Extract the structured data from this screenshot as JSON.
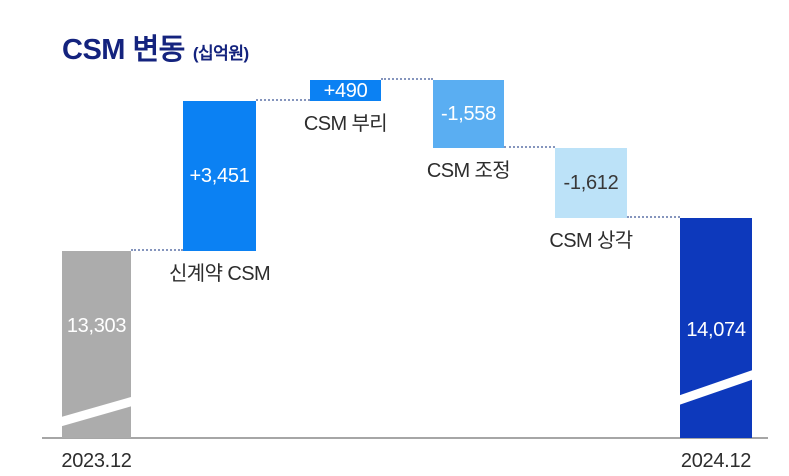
{
  "title": {
    "text": "CSM 변동",
    "unit": "(십억원)"
  },
  "chart_data": {
    "type": "waterfall",
    "title": "CSM 변동",
    "unit_label": "(십억원)",
    "x_axis_labels": [
      "2023.12",
      "2024.12"
    ],
    "bars": [
      {
        "id": "opening-2023-12",
        "kind": "total",
        "value": 13303,
        "value_label": "13,303",
        "axis_label": "2023.12",
        "color_role": "bar_gray",
        "broken_base": true
      },
      {
        "id": "new-contract-csm",
        "kind": "increase",
        "value": 3451,
        "value_label": "+3,451",
        "category_label": "신계약 CSM",
        "color_role": "bar_blue"
      },
      {
        "id": "csm-interest-accretion",
        "kind": "increase",
        "value": 490,
        "value_label": "+490",
        "category_label": "CSM 부리",
        "color_role": "bar_blue"
      },
      {
        "id": "csm-adjustment",
        "kind": "decrease",
        "value": -1558,
        "value_label": "-1,558",
        "category_label": "CSM 조정",
        "color_role": "bar_sky"
      },
      {
        "id": "csm-amortization",
        "kind": "decrease",
        "value": -1612,
        "value_label": "-1,612",
        "category_label": "CSM 상각",
        "color_role": "bar_pale",
        "value_text": "dark"
      },
      {
        "id": "closing-2024-12",
        "kind": "total",
        "value": 14074,
        "value_label": "14,074",
        "axis_label": "2024.12",
        "color_role": "bar_navy",
        "broken_base": true
      }
    ],
    "colors": {
      "bar_gray": "#ACACAC",
      "bar_blue": "#0B81F3",
      "bar_sky": "#5AAEF2",
      "bar_pale": "#BCE2F8",
      "bar_navy": "#0D39BC",
      "title_text": "#14237E",
      "axis_line": "#A6A6A6",
      "connector_dots": "#8595BD",
      "category_text": "#2D2D2D",
      "axis_label_text": "#2D2D2D",
      "value_text_light": "#FFFFFF",
      "value_text_dark": "#383838"
    },
    "layout_hints": {
      "broken_axis": true,
      "grid": false,
      "legend": false
    }
  }
}
